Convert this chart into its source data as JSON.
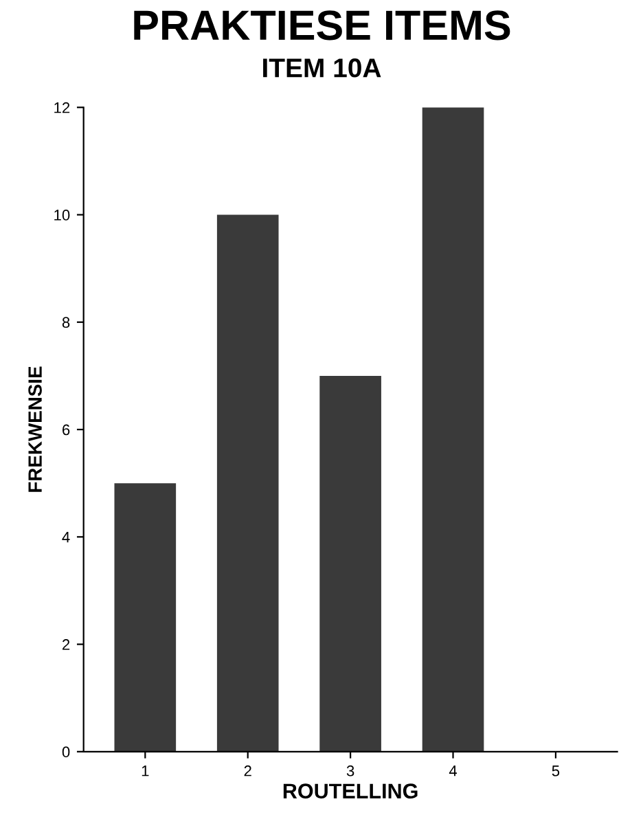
{
  "chart_data": {
    "type": "bar",
    "title": "PRAKTIESE ITEMS",
    "subtitle": "ITEM 10A",
    "xlabel": "ROUTELLING",
    "ylabel": "FREKWENSIE",
    "categories": [
      "1",
      "2",
      "3",
      "4",
      "5"
    ],
    "values": [
      5,
      10,
      7,
      12,
      0
    ],
    "color": "#3a3a3a",
    "ylim": [
      0,
      12
    ],
    "yticks": [
      0,
      2,
      4,
      6,
      8,
      10,
      12
    ],
    "grid": false
  }
}
